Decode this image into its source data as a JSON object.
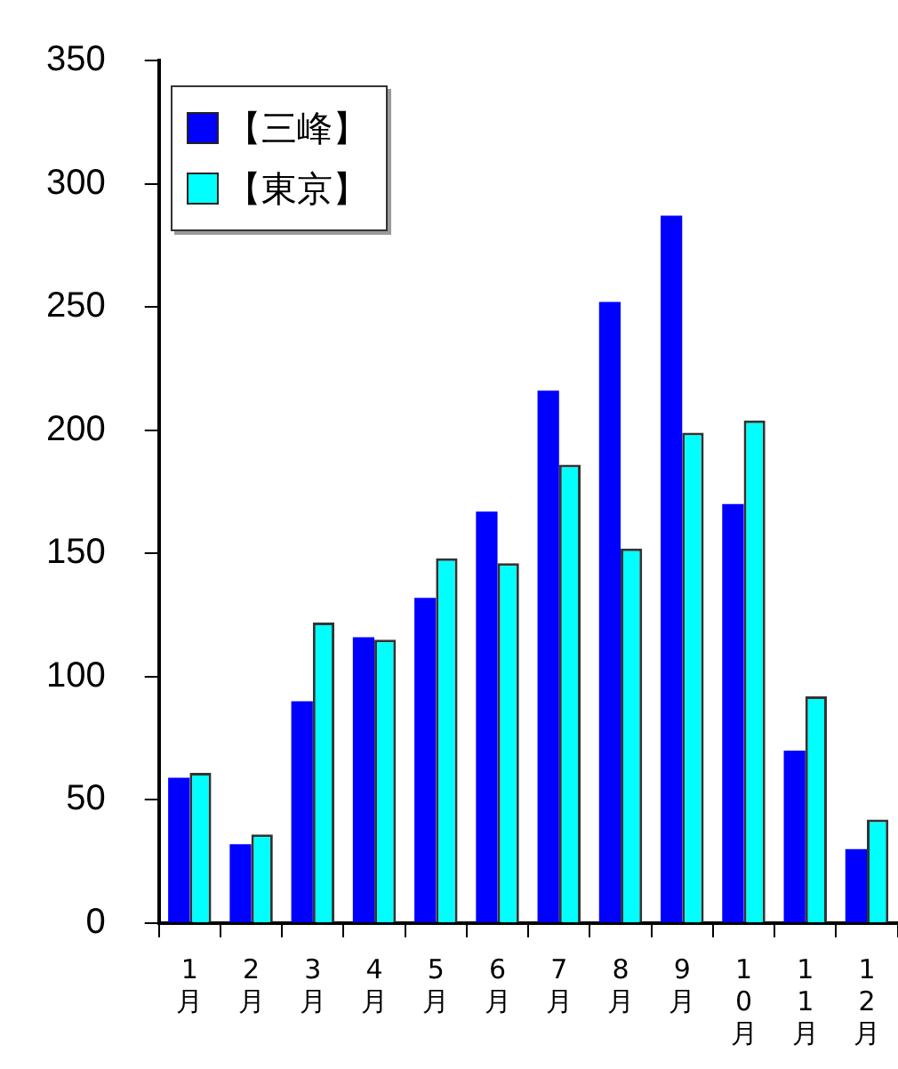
{
  "chart_data": {
    "type": "bar",
    "categories": [
      "1月",
      "2月",
      "3月",
      "4月",
      "5月",
      "6月",
      "7月",
      "8月",
      "9月",
      "10月",
      "11月",
      "12月"
    ],
    "series": [
      {
        "name": "【三峰】",
        "color": "#0000ff",
        "values": [
          59,
          32,
          90,
          116,
          132,
          167,
          216,
          252,
          287,
          170,
          70,
          30
        ]
      },
      {
        "name": "【東京】",
        "color": "#00ffff",
        "values": [
          61,
          36,
          122,
          115,
          148,
          146,
          186,
          152,
          199,
          204,
          92,
          42
        ]
      }
    ],
    "ylim": [
      0,
      350
    ],
    "yticks": [
      0,
      50,
      100,
      150,
      200,
      250,
      300,
      350
    ],
    "grid": false,
    "legend": "top left"
  }
}
